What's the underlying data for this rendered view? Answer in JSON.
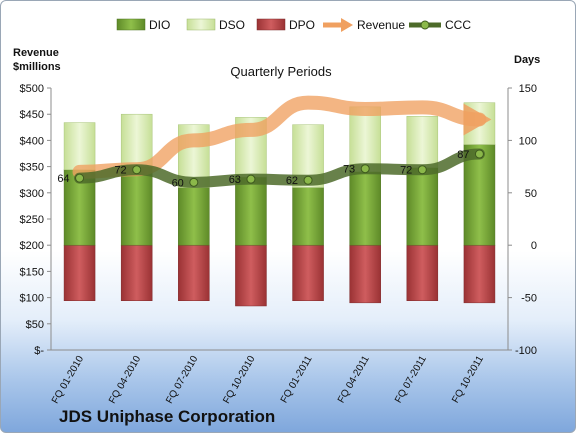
{
  "chart_data": {
    "type": "bar",
    "title": "Quarterly Periods",
    "company": "JDS Uniphase Corporation",
    "left_axis_label": [
      "Revenue",
      "$millions"
    ],
    "right_axis_label": "Days",
    "left_ylim": [
      0,
      500
    ],
    "left_ticks": [
      0,
      50,
      100,
      150,
      200,
      250,
      300,
      350,
      400,
      450,
      500
    ],
    "left_tick_labels": [
      "$-",
      "$50",
      "$100",
      "$150",
      "$200",
      "$250",
      "$300",
      "$350",
      "$400",
      "$450",
      "$500"
    ],
    "right_ylim": [
      -100,
      150
    ],
    "right_ticks": [
      -100,
      -50,
      0,
      50,
      100,
      150
    ],
    "categories": [
      "FQ 01-2010",
      "FQ 04-2010",
      "FQ 07-2010",
      "FQ 10-2010",
      "FQ 01-2011",
      "FQ 04-2011",
      "FQ 07-2011",
      "FQ 10-2011"
    ],
    "legend_position": "top",
    "series": [
      {
        "name": "DIO",
        "axis": "right",
        "kind": "stacked-bar",
        "color": "#77a33a",
        "values": [
          72,
          75,
          55,
          65,
          55,
          70,
          74,
          96
        ]
      },
      {
        "name": "DSO",
        "axis": "right",
        "kind": "stacked-bar",
        "color": "#d8ebb0",
        "values": [
          45,
          50,
          60,
          57,
          60,
          62,
          49,
          40
        ]
      },
      {
        "name": "DPO",
        "axis": "right",
        "kind": "stacked-bar-negative",
        "color": "#b84648",
        "values": [
          -53,
          -53,
          -53,
          -58,
          -53,
          -55,
          -53,
          -55
        ]
      },
      {
        "name": "Revenue",
        "axis": "left",
        "kind": "line",
        "color": "#f0a060",
        "values": [
          340,
          345,
          400,
          420,
          472,
          460,
          463,
          440
        ]
      },
      {
        "name": "CCC",
        "axis": "right",
        "kind": "line",
        "color": "#4d6b2a",
        "values": [
          64,
          72,
          60,
          63,
          62,
          73,
          72,
          87
        ],
        "data_labels": [
          "64",
          "72",
          "60",
          "63",
          "62",
          "73",
          "72",
          "87"
        ]
      }
    ]
  }
}
